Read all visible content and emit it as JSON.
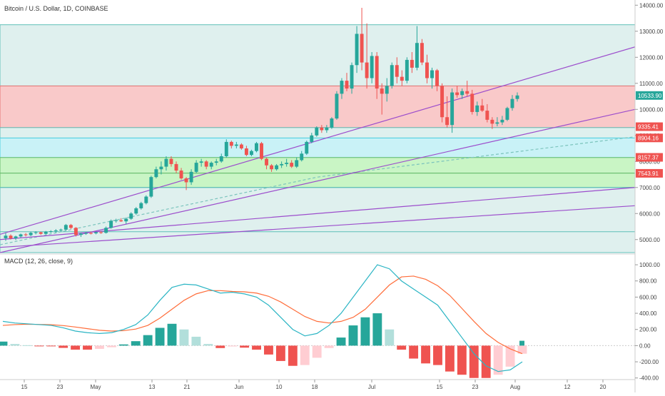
{
  "header": {
    "title": "Bitcoin / U.S. Dollar, 1D, COINBASE"
  },
  "macd": {
    "label": "MACD (12, 26, close, 9)"
  },
  "colors": {
    "up": "#26a69a",
    "down": "#ef5350",
    "up_light": "#b2dfdb",
    "down_light": "#ffcdd2",
    "macd_line": "#2bb5c4",
    "signal_line": "#ff6d3a",
    "trend": "#9c4dcc"
  },
  "chart_data": [
    {
      "type": "candlestick",
      "title": "Bitcoin / U.S. Dollar, 1D, COINBASE",
      "ylim": [
        4500,
        14200
      ],
      "y_ticks": [
        "14000.00",
        "13000.00",
        "12000.00",
        "11000.00",
        "10000.00",
        "9000.00",
        "8000.00",
        "7000.00",
        "6000.00",
        "5000.00"
      ],
      "x_ticks": [
        "15",
        "23",
        "May",
        "13",
        "21",
        "Jun",
        "10",
        "18",
        "Jul",
        "15",
        "23",
        "Aug",
        "12",
        "20"
      ],
      "price_tags": [
        {
          "label": "10533.90",
          "value": 10534,
          "kind": "last"
        },
        {
          "label": "9335.41",
          "value": 9335,
          "kind": "down"
        },
        {
          "label": "8904.16",
          "value": 8904,
          "kind": "down"
        },
        {
          "label": "8157.37",
          "value": 8157,
          "kind": "down"
        },
        {
          "label": "7543.91",
          "value": 7544,
          "kind": "down"
        }
      ],
      "zones": [
        {
          "from": 10900,
          "to": 13250,
          "color": "#dff0ee",
          "border": "#5fbfb8"
        },
        {
          "from": 9300,
          "to": 10900,
          "color": "#f9c9c9",
          "border": "#e57373"
        },
        {
          "from": 8900,
          "to": 9300,
          "color": "#dff0ee",
          "border": "#5fbfb8"
        },
        {
          "from": 8150,
          "to": 8900,
          "color": "#c9f2f7",
          "border": "#4dd0e1"
        },
        {
          "from": 7550,
          "to": 8150,
          "color": "#c9f5c5",
          "border": "#66bb6a"
        },
        {
          "from": 7000,
          "to": 7550,
          "color": "#c9f5c5",
          "border": "#66bb6a"
        },
        {
          "from": 4500,
          "to": 7000,
          "color": "#dff0ee",
          "border": "#5fbfb8"
        }
      ],
      "levels": [
        5300,
        7000
      ],
      "candles": [
        [
          5050,
          5250,
          4950,
          5150
        ],
        [
          5150,
          5200,
          5000,
          5050
        ],
        [
          5050,
          5150,
          4980,
          5120
        ],
        [
          5120,
          5230,
          5070,
          5200
        ],
        [
          5200,
          5250,
          5120,
          5170
        ],
        [
          5170,
          5300,
          5130,
          5260
        ],
        [
          5260,
          5320,
          5200,
          5280
        ],
        [
          5280,
          5300,
          5180,
          5220
        ],
        [
          5220,
          5330,
          5190,
          5300
        ],
        [
          5300,
          5360,
          5250,
          5320
        ],
        [
          5320,
          5400,
          5260,
          5350
        ],
        [
          5350,
          5420,
          5300,
          5380
        ],
        [
          5380,
          5600,
          5340,
          5560
        ],
        [
          5560,
          5600,
          5400,
          5450
        ],
        [
          5450,
          5480,
          5120,
          5180
        ],
        [
          5180,
          5260,
          5100,
          5230
        ],
        [
          5230,
          5290,
          5180,
          5250
        ],
        [
          5250,
          5300,
          5200,
          5240
        ],
        [
          5240,
          5310,
          5200,
          5280
        ],
        [
          5280,
          5330,
          5220,
          5260
        ],
        [
          5260,
          5500,
          5230,
          5450
        ],
        [
          5450,
          5770,
          5420,
          5720
        ],
        [
          5720,
          5800,
          5650,
          5740
        ],
        [
          5740,
          5820,
          5680,
          5700
        ],
        [
          5700,
          5850,
          5600,
          5800
        ],
        [
          5800,
          6050,
          5760,
          6000
        ],
        [
          6000,
          6250,
          5950,
          6200
        ],
        [
          6200,
          6450,
          6150,
          6400
        ],
        [
          6400,
          6700,
          6350,
          6650
        ],
        [
          6650,
          7450,
          6600,
          7400
        ],
        [
          7400,
          7800,
          7350,
          7700
        ],
        [
          7700,
          8000,
          7500,
          7800
        ],
        [
          7800,
          8200,
          7650,
          8100
        ],
        [
          8100,
          8200,
          7800,
          7900
        ],
        [
          7900,
          8000,
          7550,
          7650
        ],
        [
          7650,
          7750,
          7300,
          7350
        ],
        [
          7350,
          7400,
          6900,
          7200
        ],
        [
          7200,
          7700,
          7100,
          7600
        ],
        [
          7600,
          8050,
          7550,
          7950
        ],
        [
          7950,
          8100,
          7800,
          8000
        ],
        [
          8000,
          8050,
          7700,
          7800
        ],
        [
          7800,
          8000,
          7700,
          7950
        ],
        [
          7950,
          8100,
          7850,
          8000
        ],
        [
          8000,
          8300,
          7950,
          8200
        ],
        [
          8200,
          8850,
          8150,
          8750
        ],
        [
          8750,
          8800,
          8500,
          8600
        ],
        [
          8600,
          8750,
          8500,
          8650
        ],
        [
          8650,
          8700,
          8450,
          8500
        ],
        [
          8500,
          8600,
          8200,
          8250
        ],
        [
          8250,
          8450,
          8200,
          8400
        ],
        [
          8400,
          8750,
          8350,
          8700
        ],
        [
          8700,
          8750,
          8050,
          8100
        ],
        [
          8100,
          8150,
          7700,
          7850
        ],
        [
          7850,
          7900,
          7600,
          7700
        ],
        [
          7700,
          7900,
          7650,
          7850
        ],
        [
          7850,
          8000,
          7750,
          7900
        ],
        [
          7900,
          8100,
          7800,
          7950
        ],
        [
          7950,
          8050,
          7750,
          7800
        ],
        [
          7800,
          8150,
          7750,
          8050
        ],
        [
          8050,
          8400,
          8000,
          8300
        ],
        [
          8300,
          8800,
          8250,
          8750
        ],
        [
          8750,
          9100,
          8700,
          9000
        ],
        [
          9000,
          9350,
          8950,
          9300
        ],
        [
          9300,
          9400,
          9100,
          9200
        ],
        [
          9200,
          9400,
          9100,
          9300
        ],
        [
          9300,
          9700,
          9250,
          9650
        ],
        [
          9650,
          10700,
          9600,
          10600
        ],
        [
          10600,
          11200,
          10400,
          11100
        ],
        [
          11100,
          11400,
          10700,
          10800
        ],
        [
          10800,
          11800,
          10600,
          11700
        ],
        [
          11700,
          13200,
          11400,
          12900
        ],
        [
          12900,
          13900,
          11500,
          11800
        ],
        [
          11800,
          13300,
          10800,
          11200
        ],
        [
          11200,
          12200,
          11000,
          12050
        ],
        [
          12050,
          12200,
          10400,
          10800
        ],
        [
          10800,
          11000,
          9800,
          10600
        ],
        [
          10600,
          11200,
          10300,
          10900
        ],
        [
          10900,
          11800,
          10800,
          11700
        ],
        [
          11700,
          12000,
          11000,
          11250
        ],
        [
          11250,
          11500,
          10900,
          11100
        ],
        [
          11100,
          12000,
          11000,
          11900
        ],
        [
          11900,
          12200,
          11400,
          11600
        ],
        [
          11600,
          13200,
          11500,
          12550
        ],
        [
          12550,
          12700,
          11700,
          11800
        ],
        [
          11800,
          12100,
          11000,
          11200
        ],
        [
          11200,
          11600,
          10800,
          11500
        ],
        [
          11500,
          11550,
          10700,
          10900
        ],
        [
          10900,
          11000,
          9500,
          9700
        ],
        [
          9700,
          10500,
          9300,
          9400
        ],
        [
          9400,
          10800,
          9100,
          10650
        ],
        [
          10650,
          10900,
          10450,
          10550
        ],
        [
          10550,
          10800,
          10400,
          10700
        ],
        [
          10700,
          11100,
          10500,
          10600
        ],
        [
          10600,
          10750,
          9800,
          9900
        ],
        [
          9900,
          10300,
          9750,
          10150
        ],
        [
          10150,
          10400,
          9900,
          9950
        ],
        [
          9950,
          10200,
          9500,
          9600
        ],
        [
          9600,
          9700,
          9250,
          9450
        ],
        [
          9450,
          9700,
          9350,
          9500
        ],
        [
          9500,
          9750,
          9400,
          9600
        ],
        [
          9600,
          10100,
          9550,
          10050
        ],
        [
          10050,
          10550,
          9950,
          10400
        ],
        [
          10400,
          10650,
          10300,
          10534
        ]
      ],
      "trend_lines": [
        {
          "points": [
            [
              0,
              4800
            ],
            [
              50,
              7400
            ],
            [
              100,
              8950
            ]
          ],
          "style": "dashed"
        },
        {
          "points": [
            [
              0,
              5200
            ],
            [
              100,
              12400
            ]
          ],
          "style": "solid"
        },
        {
          "points": [
            [
              0,
              4500
            ],
            [
              100,
              10000
            ]
          ],
          "style": "solid"
        },
        {
          "points": [
            [
              0,
              5000
            ],
            [
              100,
              7000
            ]
          ],
          "style": "solid"
        },
        {
          "points": [
            [
              0,
              4700
            ],
            [
              100,
              6300
            ]
          ],
          "style": "solid"
        }
      ]
    },
    {
      "type": "macd",
      "title": "MACD (12, 26, close, 9)",
      "ylim": [
        -420,
        1080
      ],
      "y_ticks": [
        "1000.00",
        "800.00",
        "600.00",
        "400.00",
        "200.00",
        "0.00",
        "-200.00",
        "-400.00"
      ],
      "macd_values": [
        300,
        280,
        270,
        260,
        250,
        220,
        180,
        160,
        150,
        160,
        200,
        260,
        380,
        560,
        720,
        760,
        750,
        700,
        650,
        660,
        640,
        600,
        500,
        350,
        200,
        120,
        150,
        250,
        400,
        600,
        800,
        1000,
        950,
        800,
        700,
        600,
        500,
        300,
        100,
        -100,
        -250,
        -320,
        -300,
        -200
      ],
      "signal_values": [
        250,
        260,
        265,
        262,
        258,
        248,
        230,
        210,
        190,
        180,
        185,
        205,
        250,
        340,
        450,
        560,
        640,
        680,
        680,
        670,
        665,
        650,
        610,
        540,
        450,
        360,
        300,
        280,
        300,
        350,
        450,
        600,
        750,
        850,
        860,
        820,
        740,
        620,
        460,
        300,
        150,
        40,
        -40,
        -100
      ],
      "histogram": [
        50,
        20,
        5,
        -2,
        -8,
        -28,
        -50,
        -50,
        -40,
        -20,
        15,
        55,
        130,
        220,
        270,
        200,
        110,
        20,
        -30,
        -10,
        -25,
        -50,
        -110,
        -190,
        -250,
        -240,
        -150,
        -30,
        100,
        250,
        350,
        400,
        200,
        -50,
        -160,
        -220,
        -240,
        -320,
        -360,
        -400,
        -400,
        -360,
        -260,
        -100
      ]
    }
  ]
}
